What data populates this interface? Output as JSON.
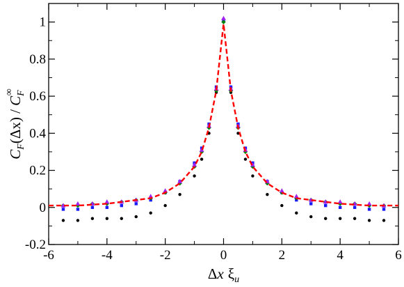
{
  "chart_data": {
    "type": "scatter",
    "title": "",
    "xlabel": "Δx ξu",
    "xlabel_parts": {
      "delta": "Δ",
      "x": "x",
      "xi": "ξ",
      "sub": "u"
    },
    "ylabel": "C_F(Δx) / C_F^∞",
    "ylabel_parts": {
      "c1": "C",
      "sub1": "F",
      "paren": "(Δx) / ",
      "c2": "C",
      "sub2": "F",
      "sup2": "∞"
    },
    "xlim": [
      -6,
      6
    ],
    "ylim": [
      -0.2,
      1.1
    ],
    "x_ticks": [
      "-6",
      "-4",
      "-2",
      "0",
      "2",
      "4",
      "6"
    ],
    "y_ticks": [
      "-0.2",
      "0",
      "0.2",
      "0.4",
      "0.6",
      "0.8",
      "1"
    ],
    "x_tick_values": [
      -6,
      -4,
      -2,
      0,
      2,
      4,
      6
    ],
    "y_tick_values": [
      -0.2,
      0,
      0.2,
      0.4,
      0.6,
      0.8,
      1
    ],
    "grid": false,
    "legend": "none",
    "series": [
      {
        "color": "#000000",
        "marker": "circle",
        "x": [
          -5.5,
          -5,
          -4.5,
          -4,
          -3.5,
          -3,
          -2.5,
          -2,
          -1.5,
          -1,
          -0.75,
          -0.5,
          -0.25,
          0,
          0.25,
          0.5,
          0.75,
          1,
          1.5,
          2,
          2.5,
          3,
          3.5,
          4,
          4.5,
          5,
          5.5
        ],
        "y": [
          -0.07,
          -0.07,
          -0.06,
          -0.06,
          -0.06,
          -0.05,
          -0.03,
          0.01,
          0.07,
          0.17,
          0.26,
          0.4,
          0.62,
          1.0,
          0.62,
          0.4,
          0.26,
          0.17,
          0.07,
          0.01,
          -0.03,
          -0.05,
          -0.06,
          -0.06,
          -0.06,
          -0.07,
          -0.07
        ]
      },
      {
        "color": "#1a1aff",
        "marker": "square",
        "x": [
          -5.5,
          -5,
          -4.5,
          -4,
          -3.5,
          -3,
          -2.5,
          -2,
          -1.5,
          -1,
          -0.75,
          -0.5,
          -0.25,
          0,
          0.25,
          0.5,
          0.75,
          1,
          1.5,
          2,
          2.5,
          3,
          3.5,
          4,
          4.5,
          5,
          5.5
        ],
        "y": [
          -0.01,
          -0.01,
          0.0,
          0.0,
          0.01,
          0.02,
          0.04,
          0.08,
          0.14,
          0.24,
          0.32,
          0.45,
          0.65,
          1.01,
          0.65,
          0.45,
          0.32,
          0.24,
          0.14,
          0.08,
          0.04,
          0.02,
          0.01,
          0.0,
          0.0,
          -0.01,
          -0.01
        ]
      },
      {
        "color": "#008000",
        "marker": "diamond",
        "x": [
          -5.5,
          -5,
          -4.5,
          -4,
          -3.5,
          -3,
          -2.5,
          -2,
          -1.5,
          -1,
          -0.75,
          -0.5,
          -0.25,
          0,
          0.25,
          0.5,
          0.75,
          1,
          1.5,
          2,
          2.5,
          3,
          3.5,
          4,
          4.5,
          5,
          5.5
        ],
        "y": [
          0.01,
          0.01,
          0.02,
          0.02,
          0.03,
          0.04,
          0.05,
          0.08,
          0.13,
          0.22,
          0.3,
          0.43,
          0.63,
          1.0,
          0.63,
          0.43,
          0.3,
          0.22,
          0.13,
          0.08,
          0.05,
          0.04,
          0.03,
          0.02,
          0.02,
          0.01,
          0.01
        ]
      },
      {
        "color": "#a020f0",
        "marker": "triangle",
        "x": [
          -5.5,
          -5,
          -4.5,
          -4,
          -3.5,
          -3,
          -2.5,
          -2,
          -1.5,
          -1,
          -0.75,
          -0.5,
          -0.25,
          0,
          0.25,
          0.5,
          0.75,
          1,
          1.5,
          2,
          2.5,
          3,
          3.5,
          4,
          4.5,
          5,
          5.5
        ],
        "y": [
          0.01,
          0.02,
          0.02,
          0.03,
          0.03,
          0.04,
          0.06,
          0.09,
          0.14,
          0.23,
          0.31,
          0.44,
          0.64,
          1.02,
          0.64,
          0.44,
          0.31,
          0.23,
          0.14,
          0.09,
          0.06,
          0.04,
          0.03,
          0.03,
          0.02,
          0.02,
          0.01
        ]
      },
      {
        "color": "#ff0000",
        "marker": "line-dashed",
        "x": [
          -6,
          -5,
          -4,
          -3,
          -2.5,
          -2,
          -1.5,
          -1,
          -0.75,
          -0.5,
          -0.25,
          0,
          0.25,
          0.5,
          0.75,
          1,
          1.5,
          2,
          2.5,
          3,
          4,
          5,
          6
        ],
        "y": [
          0.01,
          0.01,
          0.02,
          0.04,
          0.05,
          0.08,
          0.13,
          0.22,
          0.3,
          0.43,
          0.63,
          0.99,
          0.63,
          0.43,
          0.3,
          0.22,
          0.13,
          0.08,
          0.05,
          0.04,
          0.02,
          0.01,
          0.01
        ]
      }
    ]
  }
}
